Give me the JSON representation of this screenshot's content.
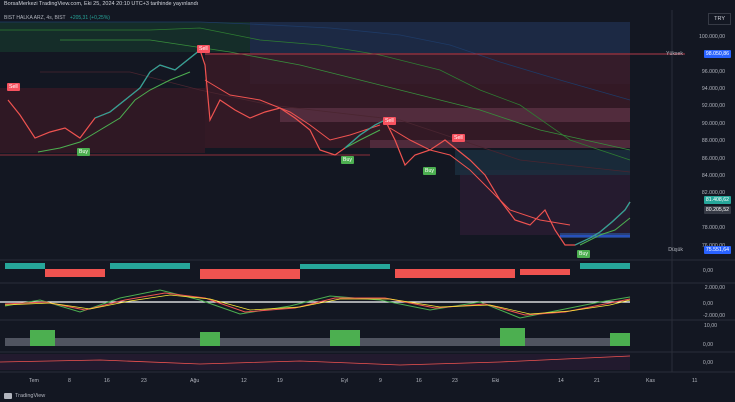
{
  "header": {
    "title": "BorsaMerkezi TradingView.com, Eki 25, 2024 20:10 UTC+3 tarihinde yayınlandı",
    "symbol": "BIST HALKA ARZ, 4s, BIST",
    "change": "+205,31 (+0,25%)"
  },
  "currency": "TRY",
  "price_axis": {
    "ticks": [
      "100.000,00",
      "98.000,00",
      "96.000,00",
      "94.000,00",
      "92.000,00",
      "90.000,00",
      "88.000,00",
      "86.000,00",
      "84.000,00",
      "82.000,00",
      "78.000,00",
      "76.000,00"
    ],
    "high_label": "Yüksek",
    "high_value": "98.050,86",
    "last_value": "81.408,62",
    "mid_value": "80.205,52",
    "low_label": "Düşük",
    "low_value": "75.551,64"
  },
  "signals": {
    "sell": "Sell",
    "buy": "Buy"
  },
  "indicator_axes": {
    "osc1": [
      "0,00"
    ],
    "osc2": [
      "2.000,00",
      "0,00",
      "-2.000,00"
    ],
    "osc3": [
      "10,00",
      "0,00"
    ],
    "osc4": [
      "0,00"
    ]
  },
  "time_axis": [
    "Tem",
    "8",
    "16",
    "23",
    "Ağu",
    "12",
    "19",
    "Eyl",
    "9",
    "16",
    "23",
    "Eki",
    "14",
    "21",
    "Kas",
    "11"
  ],
  "colors": {
    "background": "#131722",
    "bull": "#26a69a",
    "bear": "#ef5350",
    "sell_tag": "#f7525f",
    "buy_tag": "#4caf50",
    "accent": "#2962ff"
  },
  "footer": {
    "brand": "TradingView"
  }
}
